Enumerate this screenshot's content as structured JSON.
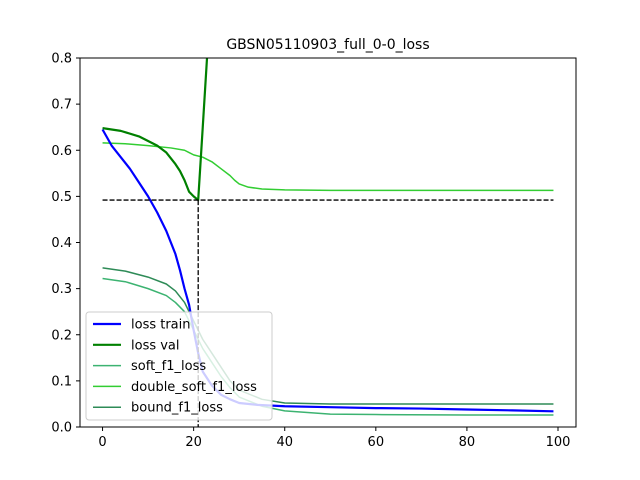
{
  "chart_data": {
    "type": "line",
    "title": "GBSN05110903_full_0-0_loss",
    "xlabel": "",
    "ylabel": "",
    "xlim": [
      -4.95,
      103.95
    ],
    "ylim": [
      0.0,
      0.8
    ],
    "xticks": [
      0,
      20,
      40,
      60,
      80,
      100
    ],
    "yticks": [
      0.0,
      0.1,
      0.2,
      0.3,
      0.4,
      0.5,
      0.6,
      0.7,
      0.8
    ],
    "xtick_labels": [
      "0",
      "20",
      "40",
      "60",
      "80",
      "100"
    ],
    "ytick_labels": [
      "0.0",
      "0.1",
      "0.2",
      "0.3",
      "0.4",
      "0.5",
      "0.6",
      "0.7",
      "0.8"
    ],
    "legend_position": "lower-left",
    "best_epoch": 21,
    "best_value": 0.492,
    "series": [
      {
        "name": "loss train",
        "color": "#0000ff",
        "legend": true,
        "x": [
          0,
          2,
          4,
          6,
          8,
          10,
          12,
          14,
          15,
          16,
          17,
          18,
          19,
          20,
          21,
          22,
          24,
          26,
          28,
          30,
          34,
          40,
          50,
          60,
          70,
          80,
          90,
          99
        ],
        "y": [
          0.645,
          0.61,
          0.585,
          0.56,
          0.53,
          0.5,
          0.465,
          0.425,
          0.4,
          0.375,
          0.34,
          0.3,
          0.265,
          0.21,
          0.16,
          0.12,
          0.09,
          0.07,
          0.06,
          0.052,
          0.048,
          0.045,
          0.043,
          0.041,
          0.04,
          0.038,
          0.036,
          0.034
        ]
      },
      {
        "name": "loss val",
        "color": "#008000",
        "legend": true,
        "x": [
          0,
          4,
          8,
          12,
          14,
          16,
          17,
          18,
          19,
          20,
          21,
          22,
          23
        ],
        "y": [
          0.648,
          0.642,
          0.63,
          0.61,
          0.595,
          0.57,
          0.555,
          0.535,
          0.51,
          0.5,
          0.492,
          0.65,
          0.81
        ]
      },
      {
        "name": "soft_f1_loss",
        "color": "#3cb371",
        "legend": true,
        "x": [
          0,
          5,
          10,
          14,
          16,
          18,
          19,
          20,
          21,
          22,
          24,
          26,
          28,
          30,
          35,
          40,
          50,
          60,
          80,
          99
        ],
        "y": [
          0.322,
          0.315,
          0.3,
          0.285,
          0.27,
          0.25,
          0.23,
          0.21,
          0.19,
          0.17,
          0.14,
          0.11,
          0.085,
          0.065,
          0.045,
          0.035,
          0.028,
          0.027,
          0.026,
          0.026
        ]
      },
      {
        "name": "double_soft_f1_loss",
        "color": "#32cd32",
        "legend": true,
        "x": [
          0,
          5,
          10,
          15,
          18,
          19,
          20,
          22,
          24,
          26,
          28,
          29,
          30,
          32,
          35,
          40,
          50,
          60,
          80,
          99
        ],
        "y": [
          0.616,
          0.614,
          0.61,
          0.605,
          0.6,
          0.595,
          0.59,
          0.585,
          0.575,
          0.56,
          0.545,
          0.535,
          0.527,
          0.52,
          0.516,
          0.514,
          0.513,
          0.513,
          0.513,
          0.513
        ]
      },
      {
        "name": "bound_f1_loss",
        "color": "#2e8b57",
        "legend": true,
        "x": [
          0,
          5,
          10,
          14,
          16,
          18,
          19,
          20,
          21,
          22,
          24,
          26,
          28,
          30,
          35,
          40,
          50,
          60,
          80,
          99
        ],
        "y": [
          0.345,
          0.338,
          0.325,
          0.31,
          0.295,
          0.27,
          0.25,
          0.23,
          0.21,
          0.19,
          0.16,
          0.13,
          0.1,
          0.08,
          0.06,
          0.052,
          0.05,
          0.05,
          0.05,
          0.05
        ]
      },
      {
        "name": "best-value-guide",
        "color": "#000000",
        "legend": false,
        "dashed": true,
        "x": [
          0,
          99
        ],
        "y": [
          0.492,
          0.492
        ]
      }
    ]
  }
}
